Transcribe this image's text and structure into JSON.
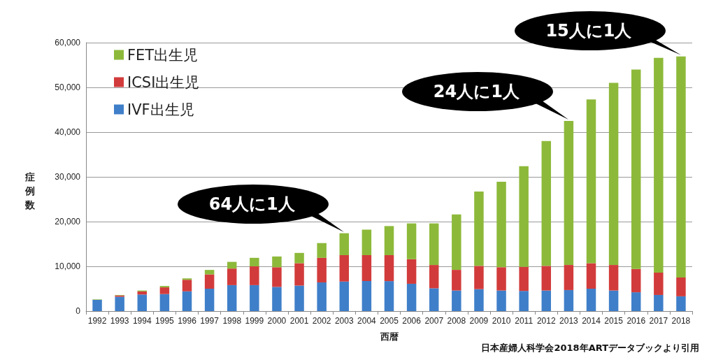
{
  "chart_data": {
    "type": "bar",
    "stacked": true,
    "xlabel": "西暦",
    "ylabel": "症例数",
    "categories": [
      "1992",
      "1993",
      "1994",
      "1995",
      "1996",
      "1997",
      "1998",
      "1999",
      "2000",
      "2001",
      "2002",
      "2003",
      "2004",
      "2005",
      "2006",
      "2007",
      "2008",
      "2009",
      "2010",
      "2011",
      "2012",
      "2013",
      "2014",
      "2015",
      "2016",
      "2017",
      "2018"
    ],
    "series": [
      {
        "name": "IVF出生児",
        "color": "#3f7fc9",
        "values": [
          2500,
          3200,
          3700,
          3800,
          4400,
          5000,
          5800,
          5800,
          5400,
          5700,
          6400,
          6600,
          6700,
          6700,
          6100,
          5100,
          4600,
          4900,
          4600,
          4500,
          4600,
          4700,
          5000,
          4600,
          4200,
          3600,
          3300
        ]
      },
      {
        "name": "ICSI出生児",
        "color": "#d23b3b",
        "values": [
          0,
          300,
          700,
          1500,
          2600,
          3200,
          3700,
          4200,
          4400,
          5000,
          5500,
          5900,
          5800,
          5800,
          5500,
          5200,
          4600,
          5200,
          5200,
          5400,
          5500,
          5600,
          5700,
          5700,
          5200,
          5000,
          4200
        ]
      },
      {
        "name": "FET出生児",
        "color": "#8db93a",
        "values": [
          100,
          100,
          200,
          300,
          300,
          1000,
          1500,
          1900,
          2400,
          2300,
          3300,
          4900,
          5700,
          6500,
          8000,
          9300,
          12400,
          16600,
          19100,
          22500,
          27900,
          32200,
          36600,
          40700,
          44600,
          48000,
          49400
        ]
      }
    ],
    "ylim": [
      0,
      60000
    ],
    "yticks": [
      {
        "value": 0,
        "label": "0"
      },
      {
        "value": 10000,
        "label": "10,000"
      },
      {
        "value": 20000,
        "label": "20,000"
      },
      {
        "value": 30000,
        "label": "30,000"
      },
      {
        "value": 40000,
        "label": "40,000"
      },
      {
        "value": 50000,
        "label": "50,000"
      },
      {
        "value": 60000,
        "label": "60,000"
      }
    ],
    "grid": "y",
    "legend": "top left",
    "annotations": [
      {
        "text": "64人に1人",
        "x": "2003",
        "y": 17400
      },
      {
        "text": "24人に1人",
        "x": "2013",
        "y": 42500
      },
      {
        "text": "15人に1人",
        "x": "2018",
        "y": 56900
      },
      "日本産婦人科学会2018年ARTデータブックより引用"
    ]
  }
}
